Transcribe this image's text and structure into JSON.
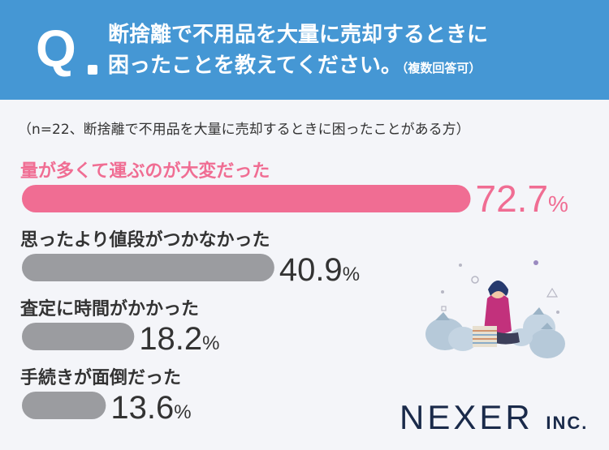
{
  "header": {
    "q_label": "Q",
    "question_line1": "断捨離で不用品を大量に売却するときに",
    "question_line2": "困ったことを教えてください。",
    "multi": "（複数回答可）"
  },
  "note": "（n=22、断捨離で不用品を大量に売却するときに困ったことがある方）",
  "logo": {
    "main": "NEXER",
    "suffix": "INC."
  },
  "colors": {
    "header": "#4597d4",
    "highlight": "#f06d93",
    "bar": "#9b9ca0",
    "text": "#333333"
  },
  "chart_data": {
    "type": "bar",
    "orientation": "horizontal",
    "categories": [
      "量が多くて運ぶのが大変だった",
      "思ったより値段がつかなかった",
      "査定に時間がかかった",
      "手続きが面倒だった"
    ],
    "values": [
      72.7,
      40.9,
      18.2,
      13.6
    ],
    "value_labels": [
      "72.7",
      "40.9",
      "18.2",
      "13.6"
    ],
    "unit": "%",
    "xlim": [
      0,
      100
    ],
    "highlight_index": 0
  }
}
